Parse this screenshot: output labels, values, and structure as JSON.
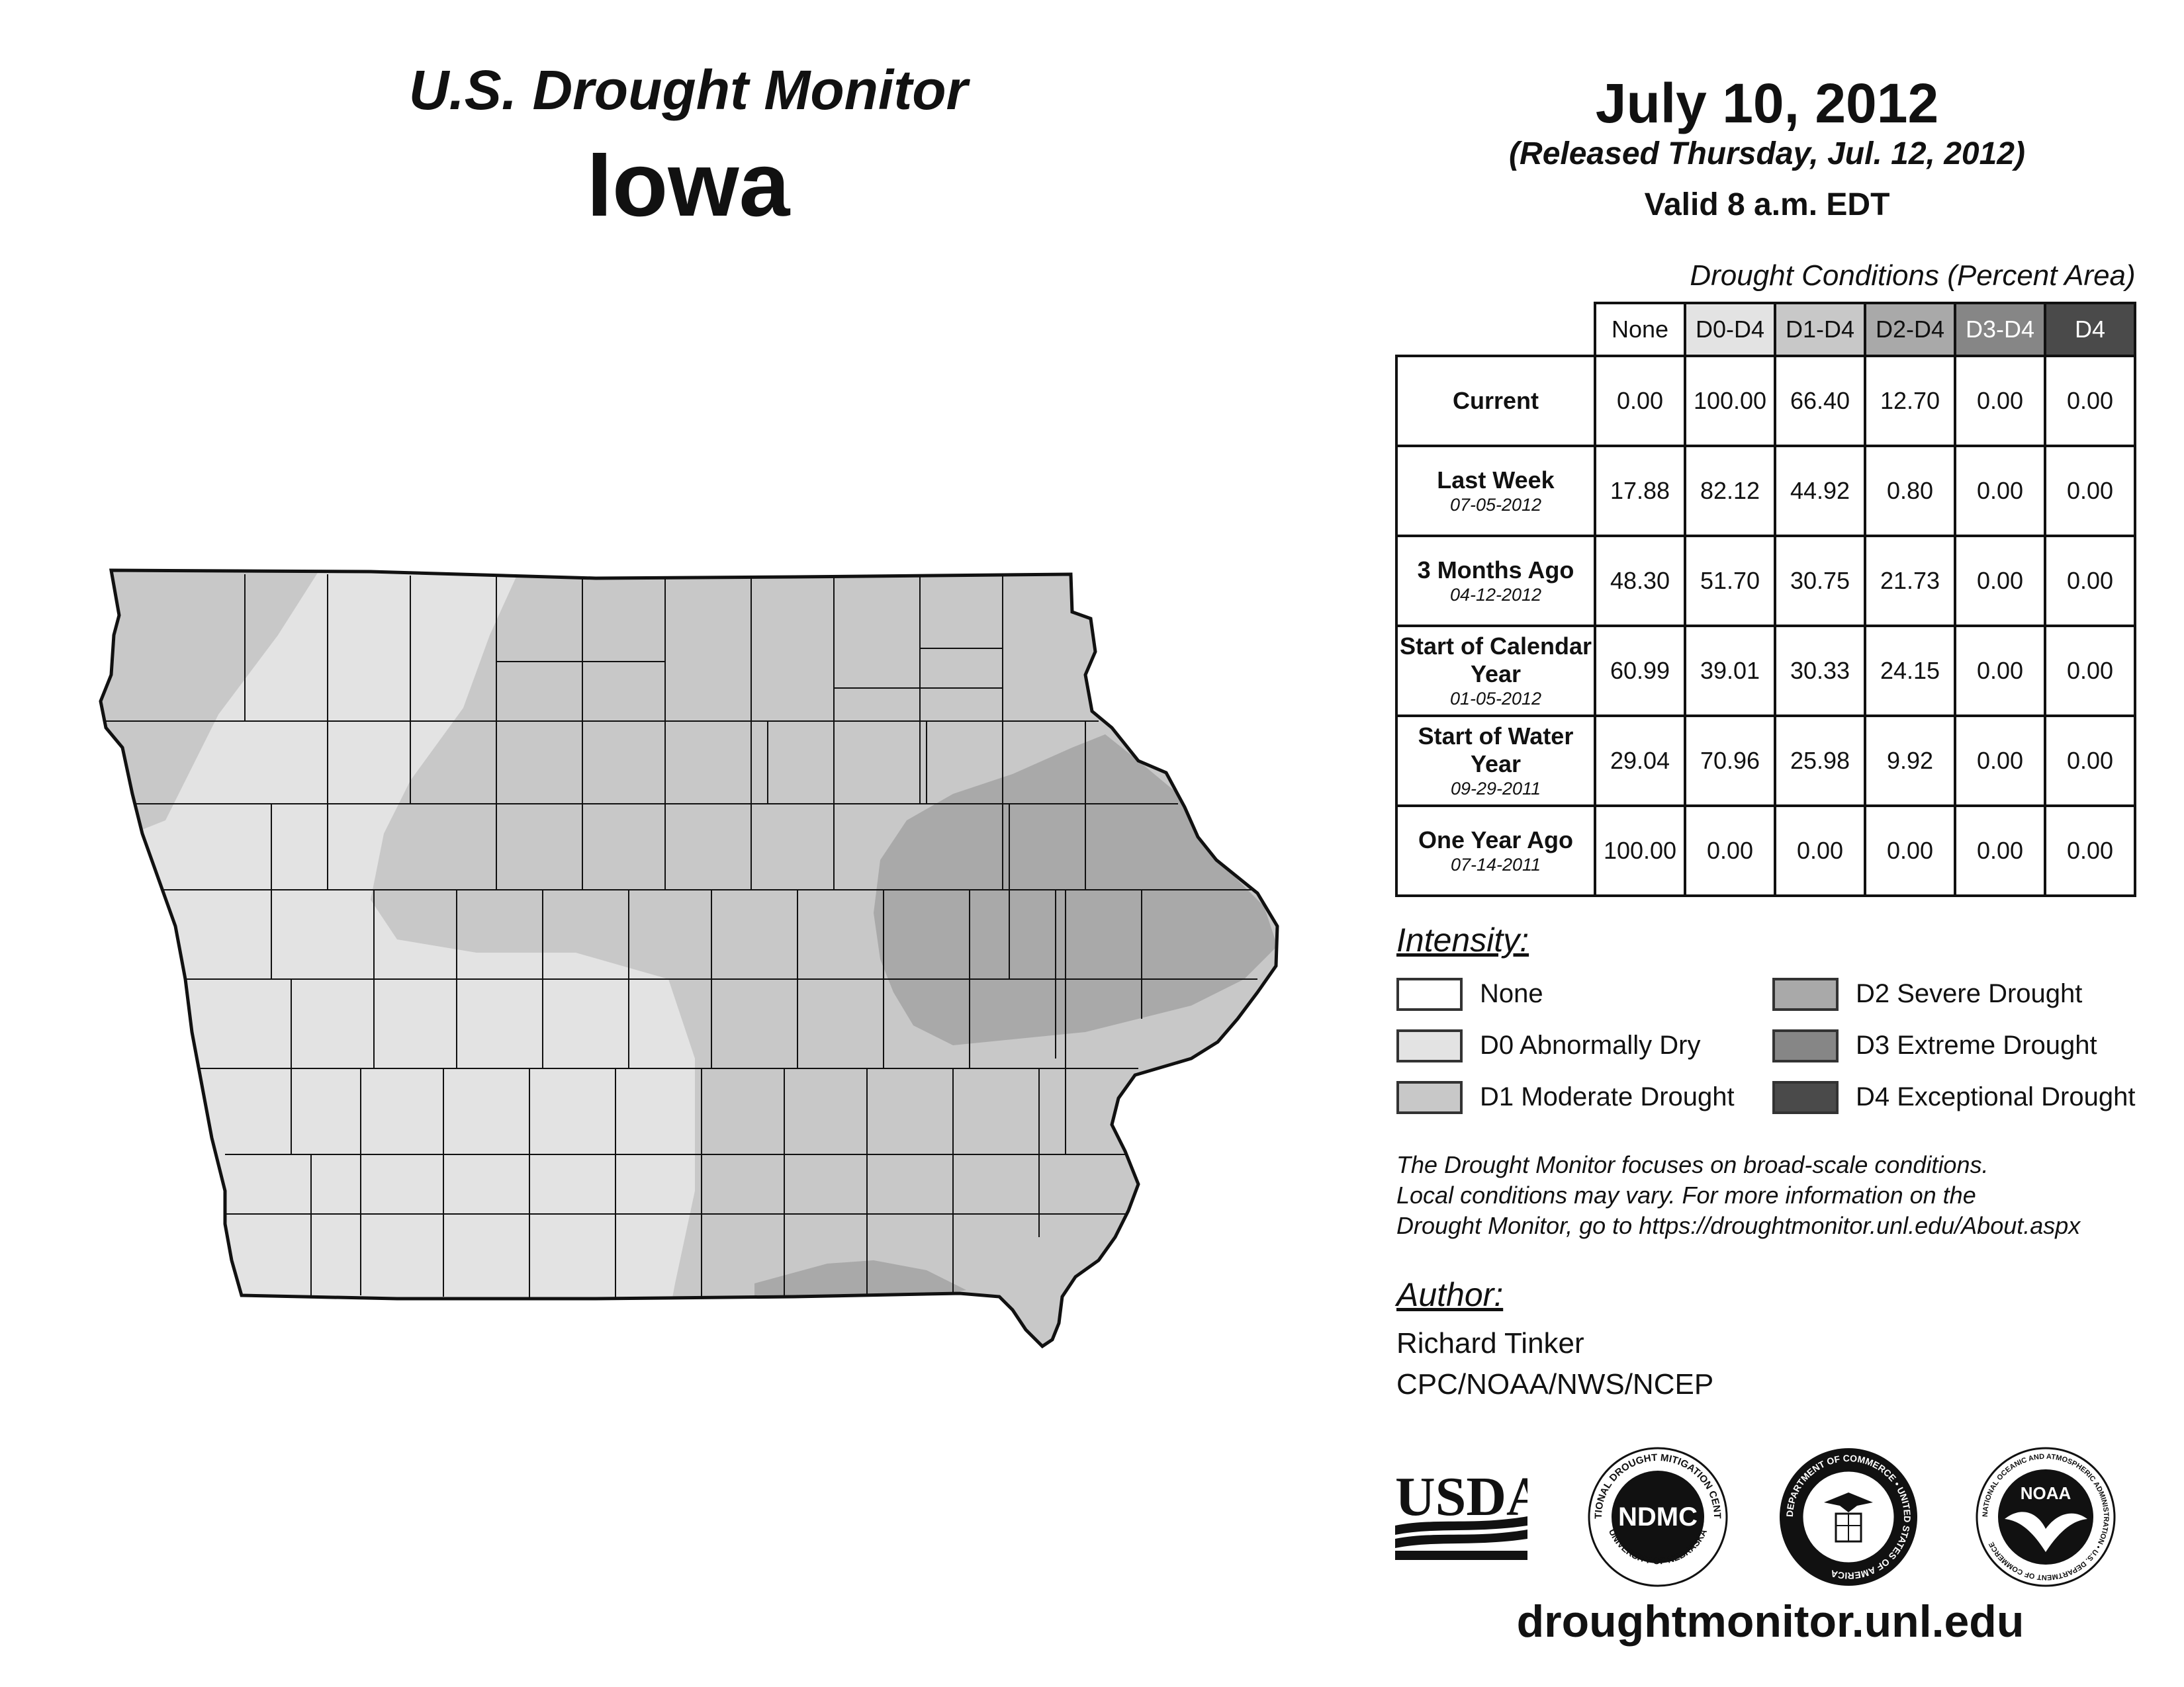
{
  "header": {
    "title": "U.S. Drought Monitor",
    "state": "Iowa",
    "date": "July 10, 2012",
    "released": "(Released Thursday, Jul. 12, 2012)",
    "valid": "Valid 8 a.m. EDT"
  },
  "table": {
    "caption": "Drought Conditions (Percent Area)",
    "columns": [
      "None",
      "D0-D4",
      "D1-D4",
      "D2-D4",
      "D3-D4",
      "D4"
    ],
    "column_colors": [
      "#ffffff",
      "#e3e3e3",
      "#c8c8c8",
      "#a9a9a9",
      "#868686",
      "#4a4a4a"
    ],
    "rows": [
      {
        "label": "Current",
        "date": "",
        "values": [
          "0.00",
          "100.00",
          "66.40",
          "12.70",
          "0.00",
          "0.00"
        ]
      },
      {
        "label": "Last Week",
        "date": "07-05-2012",
        "values": [
          "17.88",
          "82.12",
          "44.92",
          "0.80",
          "0.00",
          "0.00"
        ]
      },
      {
        "label": "3 Months Ago",
        "date": "04-12-2012",
        "values": [
          "48.30",
          "51.70",
          "30.75",
          "21.73",
          "0.00",
          "0.00"
        ]
      },
      {
        "label": "Start of Calendar Year",
        "date": "01-05-2012",
        "values": [
          "60.99",
          "39.01",
          "30.33",
          "24.15",
          "0.00",
          "0.00"
        ]
      },
      {
        "label": "Start of Water Year",
        "date": "09-29-2011",
        "values": [
          "29.04",
          "70.96",
          "25.98",
          "9.92",
          "0.00",
          "0.00"
        ]
      },
      {
        "label": "One Year Ago",
        "date": "07-14-2011",
        "values": [
          "100.00",
          "0.00",
          "0.00",
          "0.00",
          "0.00",
          "0.00"
        ]
      }
    ]
  },
  "legend": {
    "heading": "Intensity:",
    "items": [
      {
        "label": "None",
        "color": "#ffffff"
      },
      {
        "label": "D0 Abnormally Dry",
        "color": "#e3e3e3"
      },
      {
        "label": "D1 Moderate Drought",
        "color": "#c8c8c8"
      },
      {
        "label": "D2 Severe Drought",
        "color": "#a9a9a9"
      },
      {
        "label": "D3 Extreme Drought",
        "color": "#868686"
      },
      {
        "label": "D4 Exceptional Drought",
        "color": "#4a4a4a"
      }
    ]
  },
  "note": {
    "line1": "The Drought Monitor focuses on broad-scale conditions.",
    "line2": "Local conditions may vary. For more information on the",
    "line3": "Drought Monitor, go to https://droughtmonitor.unl.edu/About.aspx"
  },
  "author": {
    "heading": "Author:",
    "name": "Richard Tinker",
    "org": "CPC/NOAA/NWS/NCEP"
  },
  "logos": {
    "usda": "USDA",
    "ndmc": "NDMC",
    "ndmc_ring_top": "NATIONAL DROUGHT MITIGATION CENTER",
    "ndmc_ring_bottom": "UNIVERSITY OF NEBRASKA",
    "doc_ring": "DEPARTMENT OF COMMERCE • UNITED STATES OF AMERICA",
    "noaa": "NOAA",
    "noaa_ring": "NATIONAL OCEANIC AND ATMOSPHERIC ADMINISTRATION • U.S. DEPARTMENT OF COMMERCE"
  },
  "footer": {
    "site": "droughtmonitor.unl.edu"
  }
}
